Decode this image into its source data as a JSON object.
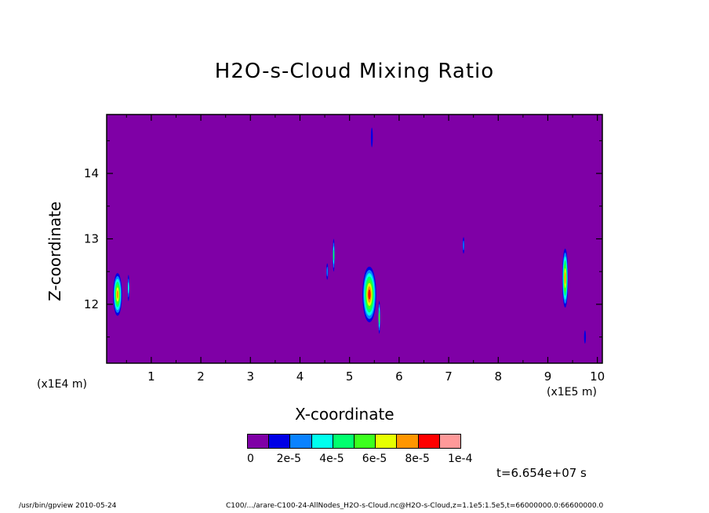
{
  "footer": {
    "program": "/usr/bin/gpview  2010-05-24",
    "source": "C100/.../arare-C100-24-AllNodes_H2O-s-Cloud.nc@H2O-s-Cloud,z=1.1e5:1.5e5,t=66000000.0:66600000.0"
  },
  "time_label": "t=6.654e+07 s",
  "colors": {
    "background_level": "#7f00a6",
    "axis": "#000000"
  },
  "chart_data": {
    "type": "heatmap",
    "title": "H2O-s-Cloud Mixing Ratio",
    "xlabel": "X-coordinate",
    "ylabel": "Z-coordinate",
    "x_multiplier": "(x1E5 m)",
    "y_multiplier": "(x1E4 m)",
    "xlim": [
      0.1,
      10.1
    ],
    "ylim": [
      11.1,
      14.9
    ],
    "x_ticks": [
      "1",
      "2",
      "3",
      "4",
      "5",
      "6",
      "7",
      "8",
      "9",
      "10"
    ],
    "y_ticks": [
      "12",
      "13",
      "14"
    ],
    "grid": false,
    "colorbar": {
      "levels": [
        0,
        1e-05,
        2e-05,
        3e-05,
        4e-05,
        5e-05,
        6e-05,
        7e-05,
        8e-05,
        9e-05,
        0.0001
      ],
      "colors": [
        "#7f00a6",
        "#0000e6",
        "#0a82ff",
        "#00ffee",
        "#00ff6e",
        "#3cff1e",
        "#e6ff00",
        "#ff9600",
        "#ff0000",
        "#ff9999"
      ],
      "tick_labels": [
        "0",
        "2e-5",
        "4e-5",
        "6e-5",
        "8e-5",
        "1e-4"
      ]
    },
    "cloud_features": [
      {
        "x": 0.32,
        "z": 12.15,
        "dx": 0.18,
        "dz": 0.65,
        "level": 7
      },
      {
        "x": 0.54,
        "z": 12.25,
        "dx": 0.03,
        "dz": 0.4,
        "level": 3
      },
      {
        "x": 4.55,
        "z": 12.5,
        "dx": 0.02,
        "dz": 0.25,
        "level": 2
      },
      {
        "x": 4.68,
        "z": 12.75,
        "dx": 0.04,
        "dz": 0.5,
        "level": 4
      },
      {
        "x": 5.45,
        "z": 14.55,
        "dx": 0.02,
        "dz": 0.3,
        "level": 1
      },
      {
        "x": 5.4,
        "z": 12.15,
        "dx": 0.28,
        "dz": 0.85,
        "level": 8
      },
      {
        "x": 5.6,
        "z": 11.8,
        "dx": 0.04,
        "dz": 0.5,
        "level": 5
      },
      {
        "x": 7.3,
        "z": 12.9,
        "dx": 0.02,
        "dz": 0.25,
        "level": 2
      },
      {
        "x": 9.35,
        "z": 12.4,
        "dx": 0.12,
        "dz": 0.9,
        "level": 7
      },
      {
        "x": 9.75,
        "z": 11.5,
        "dx": 0.02,
        "dz": 0.2,
        "level": 1
      }
    ]
  }
}
